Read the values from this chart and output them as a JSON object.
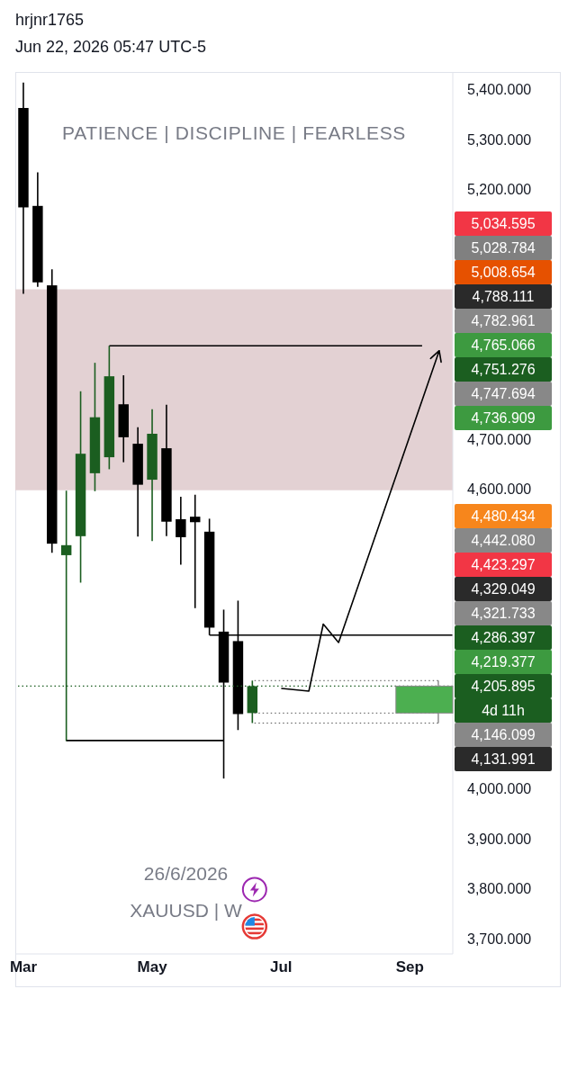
{
  "chart_data": {
    "type": "candlestick",
    "title": "PATIENCE | DISCIPLINE | FEARLESS",
    "annotations": [
      "hrjnr1765",
      "Jun 22, 2026 05:47 UTC-5",
      "26/6/2026",
      "XAUUSD | W",
      "5,034.595",
      "5,028.784",
      "5,008.654",
      "4,788.111",
      "4,782.961",
      "4,765.066",
      "4,751.276",
      "4,747.694",
      "4,736.909",
      "4,480.434",
      "4,442.080",
      "4,423.297",
      "4,329.049",
      "4,321.733",
      "4,286.397",
      "4,219.377",
      "4d 11h",
      "4,146.099",
      "4,131.991"
    ],
    "x": [
      "2026-03-02",
      "2026-03-09",
      "2026-03-16",
      "2026-03-23",
      "2026-03-30",
      "2026-04-06",
      "2026-04-13",
      "2026-04-20",
      "2026-04-27",
      "2026-05-04",
      "2026-05-11",
      "2026-05-18",
      "2026-05-25",
      "2026-06-01",
      "2026-06-08",
      "2026-06-15",
      "2026-06-22"
    ],
    "ohlc": [
      [
        5363,
        5414,
        4991,
        5164
      ],
      [
        5167,
        5234,
        5005,
        5014
      ],
      [
        5008,
        5040,
        4473,
        4491
      ],
      [
        4468,
        4597,
        4096,
        4488
      ],
      [
        4506,
        4796,
        4413,
        4671
      ],
      [
        4632,
        4853,
        4596,
        4744
      ],
      [
        4664,
        4887,
        4640,
        4826
      ],
      [
        4770,
        4828,
        4654,
        4704
      ],
      [
        4691,
        4724,
        4505,
        4609
      ],
      [
        4619,
        4760,
        4496,
        4711
      ],
      [
        4682,
        4769,
        4506,
        4535
      ],
      [
        4540,
        4585,
        4449,
        4504
      ],
      [
        4545,
        4589,
        4362,
        4534
      ],
      [
        4515,
        4541,
        4308,
        4323
      ],
      [
        4315,
        4359,
        4021,
        4213
      ],
      [
        4296,
        4377,
        4118,
        4150
      ],
      [
        4152,
        4217,
        4132,
        4205.895
      ]
    ],
    "colors": [
      "#000000",
      "#000000",
      "#000000",
      "#1b5e20",
      "#1b5e20",
      "#1b5e20",
      "#1b5e20",
      "#000000",
      "#000000",
      "#1b5e20",
      "#000000",
      "#000000",
      "#000000",
      "#000000",
      "#000000",
      "#000000",
      "#1b5e20"
    ],
    "series": [
      {
        "type": "line",
        "color": "#000000",
        "x": [
          "2026-04-13",
          "2026-09-13"
        ],
        "values": [
          4887,
          4887
        ]
      },
      {
        "type": "line",
        "color": "#000000",
        "x": [
          "2026-06-01",
          "2026-09-28"
        ],
        "values": [
          4308,
          4308
        ]
      },
      {
        "type": "line",
        "color": "#000000",
        "x": [
          "2026-03-23",
          "2026-06-08"
        ],
        "values": [
          4097,
          4097
        ]
      },
      {
        "type": "line",
        "color": "#555555",
        "line_style": "dotted",
        "x": [
          "2026-06-23",
          "2026-09-21"
        ],
        "values": [
          4217,
          4217
        ]
      },
      {
        "type": "line",
        "color": "#555555",
        "line_style": "dotted",
        "x": [
          "2026-06-23",
          "2026-09-21"
        ],
        "values": [
          4152,
          4152
        ]
      },
      {
        "type": "line",
        "color": "#555555",
        "line_style": "dotted",
        "x": [
          "2026-06-23",
          "2026-09-21"
        ],
        "values": [
          4132,
          4132
        ]
      }
    ],
    "xlim": [
      "2026-02-26",
      "2026-09-28"
    ],
    "xticks": [
      {
        "value": "2026-03-02",
        "label": "Mar"
      },
      {
        "value": "2026-05-04",
        "label": "May"
      },
      {
        "value": "2026-07-06",
        "label": "Jul"
      },
      {
        "value": "2026-09-07",
        "label": "Sep"
      }
    ],
    "ylim": [
      3670,
      5435
    ],
    "yticks": [
      {
        "value": 3700,
        "label": "3,700.000"
      },
      {
        "value": 3800,
        "label": "3,800.000"
      },
      {
        "value": 3900,
        "label": "3,900.000"
      },
      {
        "value": 4000,
        "label": "4,000.000"
      },
      {
        "value": 4600,
        "label": "4,600.000"
      },
      {
        "value": 4700,
        "label": "4,700.000"
      },
      {
        "value": 5200,
        "label": "5,200.000"
      },
      {
        "value": 5300,
        "label": "5,300.000"
      },
      {
        "value": 5400,
        "label": "5,400.000"
      }
    ],
    "ref_lines": [
      {
        "axis": "y",
        "value": 4205.895,
        "label": "4,205.895",
        "color": "#1b5e20",
        "line_style": "dotted"
      }
    ],
    "bands": [
      {
        "axis": "y",
        "from": 4598,
        "to": 5000,
        "color": "#e3d1d3"
      }
    ]
  }
}
